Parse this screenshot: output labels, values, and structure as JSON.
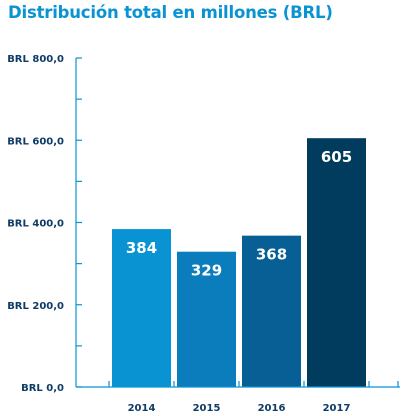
{
  "title": "Distribución total en millones (BRL)",
  "chart_data": {
    "type": "bar",
    "title": "Distribución total en millones (BRL)",
    "categories": [
      "2014",
      "2015",
      "2016",
      "2017"
    ],
    "values": [
      384,
      329,
      368,
      605
    ],
    "value_labels": [
      "384",
      "329",
      "368",
      "605"
    ],
    "xlabel": "",
    "ylabel": "",
    "ylim": [
      0,
      800
    ],
    "y_ticks": [
      0,
      200,
      400,
      600,
      800
    ],
    "y_tick_labels": [
      "BRL 0,0",
      "BRL 200,0",
      "BRL 400,0",
      "BRL 600,0",
      "BRL 800,0"
    ],
    "y_minor_step": 100,
    "grid": false,
    "legend": "none",
    "bar_colors": [
      "#0a93d2",
      "#0b7cbc",
      "#075f95",
      "#013b5e"
    ],
    "axis_color": "#0a93d2",
    "value_label_color": "#ffffff",
    "tick_label_color": "#0f3c66",
    "title_color": "#0a93d2"
  }
}
